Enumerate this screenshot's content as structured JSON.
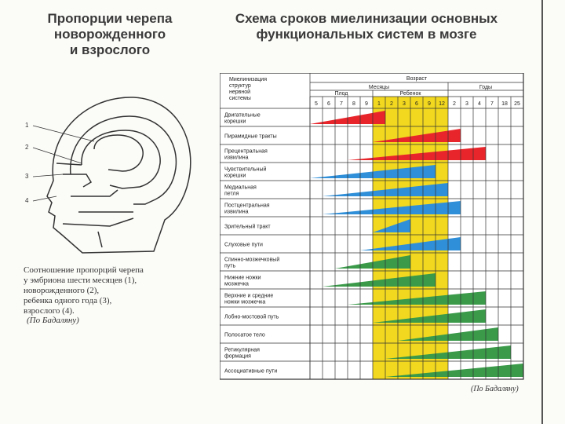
{
  "left_title": [
    "Пропорции черепа",
    "новорожденного",
    "и взрослого"
  ],
  "right_title": [
    "Схема сроков миелинизации основных",
    "функциональных систем в мозге"
  ],
  "skull_labels": [
    "1",
    "2",
    "3",
    "4"
  ],
  "caption_lines": [
    "Соотношение пропорций черепа",
    "у эмбриона шести месяцев (1),",
    "новорожденного (2),",
    "ребенка одного года (3),",
    "взрослого (4)."
  ],
  "credit_left": "(По Бадаляну)",
  "credit_right": "(По Бадаляну)",
  "table": {
    "corner_header": [
      "Миелинизация",
      "структур",
      "нервной",
      "системы"
    ],
    "age_header": "Возраст",
    "months_header": "Месяцы",
    "years_header": "Годы",
    "fetus_header": "Плод",
    "child_header": "Ребенок",
    "columns": [
      "5",
      "6",
      "7",
      "8",
      "9",
      "1",
      "2",
      "3",
      "6",
      "9",
      "12",
      "2",
      "3",
      "4",
      "7",
      "18",
      "25"
    ],
    "highlight_color": "#f2d81e",
    "rows": [
      {
        "label": [
          "Двигательные",
          "корешки"
        ]
      },
      {
        "label": [
          "Пирамидные тракты"
        ]
      },
      {
        "label": [
          "Прецентральная",
          "извилина"
        ]
      },
      {
        "label": [
          "Чувствительный",
          "корешки"
        ]
      },
      {
        "label": [
          "Медиальная",
          "петля"
        ]
      },
      {
        "label": [
          "Постцентральная",
          "извилина"
        ]
      },
      {
        "label": [
          "Зрительный тракт"
        ]
      },
      {
        "label": [
          "Слуховые пути"
        ]
      },
      {
        "label": [
          "Спинно-мозжечковый",
          "путь"
        ]
      },
      {
        "label": [
          "Нижние ножки",
          "мозжечка"
        ]
      },
      {
        "label": [
          "Верхние и средние",
          "ножки мозжечка"
        ]
      },
      {
        "label": [
          "Лобно-мостовой путь"
        ]
      },
      {
        "label": [
          "Полосатое тело"
        ]
      },
      {
        "label": [
          "Ретикулярная",
          "формация"
        ]
      },
      {
        "label": [
          "Ассоциативные пути"
        ]
      }
    ],
    "bars": [
      {
        "start": 0,
        "end": 6,
        "color": "#e8252b"
      },
      {
        "start": 5,
        "end": 12,
        "color": "#e8252b"
      },
      {
        "start": 3,
        "end": 14,
        "color": "#e8252b"
      },
      {
        "start": 0,
        "end": 10,
        "color": "#2f8fd8"
      },
      {
        "start": 1,
        "end": 11,
        "color": "#2f8fd8"
      },
      {
        "start": 1,
        "end": 12,
        "color": "#2f8fd8"
      },
      {
        "start": 5,
        "end": 8,
        "color": "#2f8fd8"
      },
      {
        "start": 4,
        "end": 12,
        "color": "#2f8fd8"
      },
      {
        "start": 2,
        "end": 8,
        "color": "#3a9a4a"
      },
      {
        "start": 1,
        "end": 10,
        "color": "#3a9a4a"
      },
      {
        "start": 3,
        "end": 14,
        "color": "#3a9a4a"
      },
      {
        "start": 5,
        "end": 14,
        "color": "#3a9a4a"
      },
      {
        "start": 7,
        "end": 15,
        "color": "#3a9a4a"
      },
      {
        "start": 6,
        "end": 16,
        "color": "#3a9a4a"
      },
      {
        "start": 6,
        "end": 17,
        "color": "#3a9a4a"
      }
    ]
  }
}
